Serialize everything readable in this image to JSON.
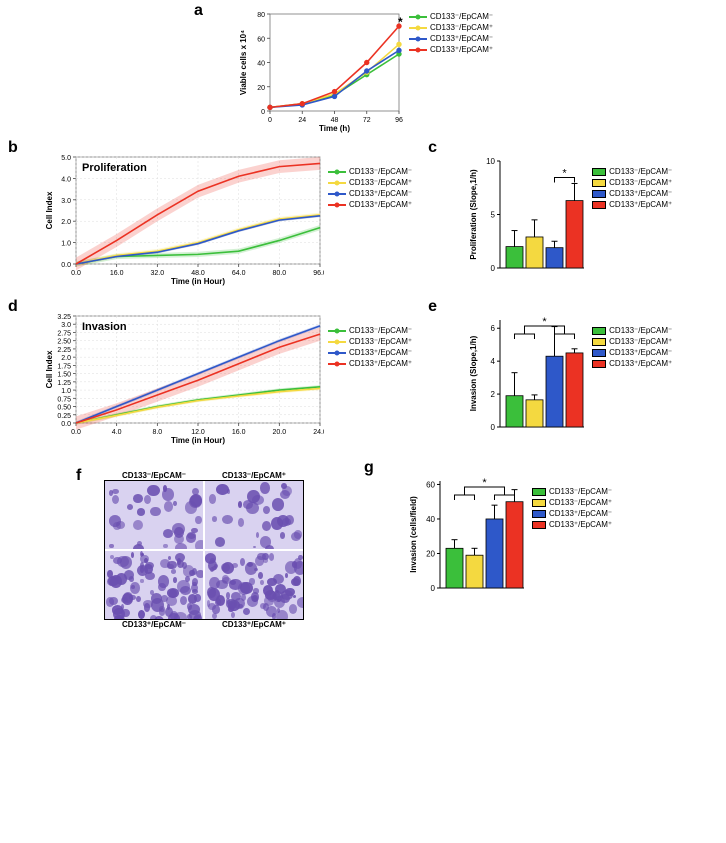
{
  "colors": {
    "green": "#3bbf3b",
    "yellow": "#f4d940",
    "blue": "#2e58c9",
    "red": "#eb3223",
    "axis": "#666666",
    "grid": "#dcdcdc"
  },
  "series_labels": {
    "s1": "CD133⁻/EpCAM⁻",
    "s2": "CD133⁻/EpCAM⁺",
    "s3": "CD133⁺/EpCAM⁻",
    "s4": "CD133⁺/EpCAM⁺"
  },
  "panel_a": {
    "label": "a",
    "type": "line",
    "title_inset": "",
    "y_label": "Viable cells x 10⁴",
    "x_label": "Time (h)",
    "x_ticks": [
      0,
      24,
      48,
      72,
      96
    ],
    "y_ticks": [
      0,
      20,
      40,
      60,
      80
    ],
    "xlim": [
      0,
      96
    ],
    "ylim": [
      0,
      80
    ],
    "series": {
      "s1": [
        [
          0,
          3
        ],
        [
          24,
          6
        ],
        [
          48,
          13
        ],
        [
          72,
          30
        ],
        [
          96,
          47
        ]
      ],
      "s2": [
        [
          0,
          3
        ],
        [
          24,
          6
        ],
        [
          48,
          14
        ],
        [
          72,
          32
        ],
        [
          96,
          55
        ]
      ],
      "s3": [
        [
          0,
          3
        ],
        [
          24,
          5
        ],
        [
          48,
          12
        ],
        [
          72,
          33
        ],
        [
          96,
          50
        ]
      ],
      "s4": [
        [
          0,
          3
        ],
        [
          24,
          6
        ],
        [
          48,
          16
        ],
        [
          72,
          40
        ],
        [
          96,
          70
        ]
      ]
    },
    "asterisk": "*"
  },
  "panel_b": {
    "label": "b",
    "type": "line",
    "title_inset": "Proliferation",
    "y_label": "Cell Index",
    "x_label": "Time (in Hour)",
    "x_ticks": [
      0,
      16,
      32,
      48,
      64,
      80,
      96
    ],
    "y_ticks": [
      0,
      1,
      2,
      3,
      4,
      5
    ],
    "xlim": [
      0,
      96
    ],
    "ylim": [
      0,
      5
    ],
    "series": {
      "s1": [
        [
          0,
          0
        ],
        [
          16,
          0.35
        ],
        [
          32,
          0.4
        ],
        [
          48,
          0.45
        ],
        [
          64,
          0.6
        ],
        [
          80,
          1.1
        ],
        [
          96,
          1.7
        ]
      ],
      "s2": [
        [
          0,
          0
        ],
        [
          16,
          0.4
        ],
        [
          32,
          0.6
        ],
        [
          48,
          1.0
        ],
        [
          64,
          1.6
        ],
        [
          80,
          2.1
        ],
        [
          96,
          2.3
        ]
      ],
      "s3": [
        [
          0,
          0
        ],
        [
          16,
          0.35
        ],
        [
          32,
          0.55
        ],
        [
          48,
          0.95
        ],
        [
          64,
          1.55
        ],
        [
          80,
          2.05
        ],
        [
          96,
          2.25
        ]
      ],
      "s4": [
        [
          0,
          0
        ],
        [
          16,
          1.1
        ],
        [
          32,
          2.3
        ],
        [
          48,
          3.4
        ],
        [
          64,
          4.1
        ],
        [
          80,
          4.55
        ],
        [
          96,
          4.7
        ]
      ]
    },
    "error_band_width": {
      "s1": 0.12,
      "s2": 0.1,
      "s3": 0.06,
      "s4": 0.3
    }
  },
  "panel_c": {
    "label": "c",
    "type": "bar",
    "y_label": "Proliferation (Slope,1/h)",
    "y_ticks": [
      0,
      5,
      10
    ],
    "ylim": [
      0,
      10
    ],
    "values": {
      "s1": 2.0,
      "s2": 2.9,
      "s3": 1.9,
      "s4": 6.3
    },
    "errors": {
      "s1": 1.5,
      "s2": 1.6,
      "s3": 0.6,
      "s4": 1.6
    },
    "sig": "*"
  },
  "panel_d": {
    "label": "d",
    "type": "line",
    "title_inset": "Invasion",
    "y_label": "Cell Index",
    "x_label": "Time (in Hour)",
    "x_ticks": [
      0,
      4,
      8,
      12,
      16,
      20,
      24
    ],
    "y_ticks": [
      0,
      0.25,
      0.5,
      0.75,
      1.0,
      1.25,
      1.5,
      1.75,
      2.0,
      2.25,
      2.5,
      2.75,
      3.0,
      3.25
    ],
    "xlim": [
      0,
      24
    ],
    "ylim": [
      0,
      3.25
    ],
    "series": {
      "s1": [
        [
          0,
          0
        ],
        [
          4,
          0.25
        ],
        [
          8,
          0.5
        ],
        [
          12,
          0.7
        ],
        [
          16,
          0.85
        ],
        [
          20,
          1.0
        ],
        [
          24,
          1.1
        ]
      ],
      "s2": [
        [
          0,
          0
        ],
        [
          4,
          0.23
        ],
        [
          8,
          0.48
        ],
        [
          12,
          0.68
        ],
        [
          16,
          0.82
        ],
        [
          20,
          0.95
        ],
        [
          24,
          1.05
        ]
      ],
      "s3": [
        [
          0,
          0
        ],
        [
          4,
          0.5
        ],
        [
          8,
          1.0
        ],
        [
          12,
          1.5
        ],
        [
          16,
          2.0
        ],
        [
          20,
          2.5
        ],
        [
          24,
          2.95
        ]
      ],
      "s4": [
        [
          0,
          0
        ],
        [
          4,
          0.4
        ],
        [
          8,
          0.85
        ],
        [
          12,
          1.3
        ],
        [
          16,
          1.8
        ],
        [
          20,
          2.3
        ],
        [
          24,
          2.7
        ]
      ]
    },
    "error_band_width": {
      "s1": 0.05,
      "s2": 0.05,
      "s3": 0.05,
      "s4": 0.2
    }
  },
  "panel_e": {
    "label": "e",
    "type": "bar",
    "y_label": "Invasion (Slope,1/h)",
    "y_ticks": [
      0,
      2,
      4,
      6
    ],
    "ylim": [
      0,
      6.5
    ],
    "values": {
      "s1": 1.9,
      "s2": 1.65,
      "s3": 4.3,
      "s4": 4.5
    },
    "errors": {
      "s1": 1.4,
      "s2": 0.3,
      "s3": 1.8,
      "s4": 0.25
    },
    "sig": "*"
  },
  "panel_f": {
    "label": "f",
    "type": "micrograph",
    "labels": {
      "tl": "CD133⁻/EpCAM⁻",
      "tr": "CD133⁻/EpCAM⁺",
      "bl": "CD133⁺/EpCAM⁻",
      "br": "CD133⁺/EpCAM⁺"
    }
  },
  "panel_g": {
    "label": "g",
    "type": "bar",
    "y_label": "Invasion (cells/field)",
    "y_ticks": [
      0,
      20,
      40,
      60
    ],
    "ylim": [
      0,
      62
    ],
    "values": {
      "s1": 23,
      "s2": 19,
      "s3": 40,
      "s4": 50
    },
    "errors": {
      "s1": 5,
      "s2": 4,
      "s3": 8,
      "s4": 7
    },
    "sig": "*"
  }
}
